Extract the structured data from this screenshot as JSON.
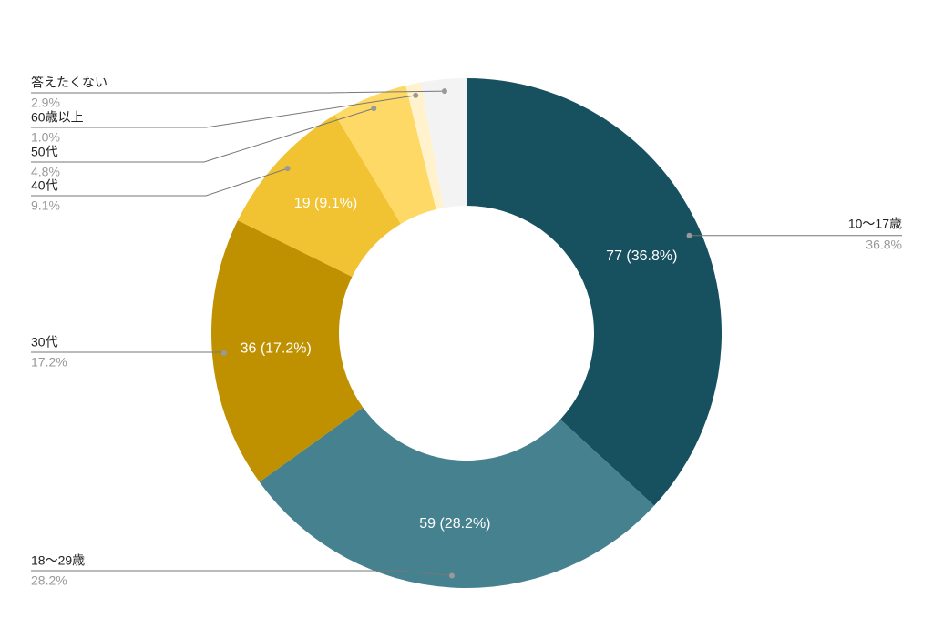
{
  "chart_data": {
    "type": "donut",
    "categories": [
      "10〜17歳",
      "18〜29歳",
      "30代",
      "40代",
      "50代",
      "60歳以上",
      "答えたくない"
    ],
    "values": [
      77,
      59,
      36,
      19,
      10,
      2,
      6
    ],
    "value_labels": [
      "77 (36.8%)",
      "59 (28.2%)",
      "36 (17.2%)",
      "19 (9.1%)",
      null,
      null,
      null
    ],
    "percent_labels": [
      "36.8%",
      "28.2%",
      "17.2%",
      "9.1%",
      "4.8%",
      "1.0%",
      "2.9%"
    ],
    "colors": [
      "#17505f",
      "#46818f",
      "#bf9000",
      "#f1c232",
      "#ffd966",
      "#fff2cc",
      "#f3f3f3"
    ]
  }
}
